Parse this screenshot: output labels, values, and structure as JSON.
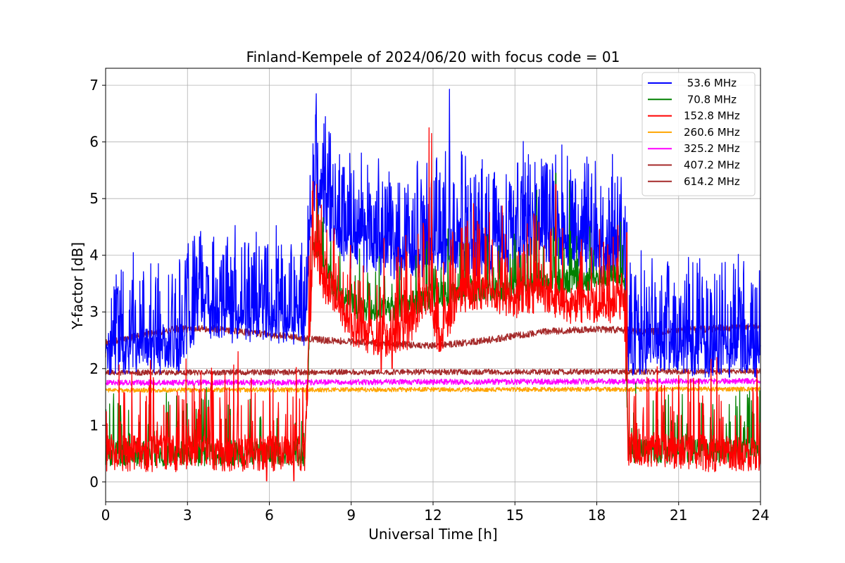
{
  "chart_data": {
    "type": "line",
    "title": "Finland-Kempele of 2024/06/20 with focus code = 01",
    "xlabel": "Universal Time [h]",
    "ylabel": "Y-factor [dB]",
    "xlim": [
      0,
      24
    ],
    "ylim": [
      -0.35,
      7.3
    ],
    "xticks": [
      0,
      3,
      6,
      9,
      12,
      15,
      18,
      21,
      24
    ],
    "yticks": [
      0,
      1,
      2,
      3,
      4,
      5,
      6,
      7
    ],
    "grid": true,
    "legend_position": "upper-right",
    "series": [
      {
        "name": " 53.6 MHz",
        "color": "#0000ff",
        "profile": [
          [
            0,
            2.2
          ],
          [
            2.8,
            2.25
          ],
          [
            3.0,
            2.6
          ],
          [
            3.5,
            2.9
          ],
          [
            4.5,
            2.75
          ],
          [
            5.5,
            2.8
          ],
          [
            6.5,
            2.75
          ],
          [
            7.3,
            2.7
          ],
          [
            7.6,
            5.1
          ],
          [
            8.2,
            4.5
          ],
          [
            9.0,
            4.05
          ],
          [
            10.0,
            3.9
          ],
          [
            11.0,
            3.85
          ],
          [
            12.0,
            3.9
          ],
          [
            13.0,
            4.0
          ],
          [
            14.0,
            3.9
          ],
          [
            15.0,
            4.05
          ],
          [
            16.0,
            4.2
          ],
          [
            17.0,
            4.1
          ],
          [
            18.0,
            3.9
          ],
          [
            19.0,
            3.85
          ],
          [
            19.15,
            2.2
          ],
          [
            21.0,
            2.2
          ],
          [
            22.0,
            2.15
          ],
          [
            24.0,
            2.15
          ]
        ],
        "noise": 0.32,
        "spike_rate": 0.5,
        "spike_max": 1.6,
        "peaks": [
          [
            7.7,
            6.48
          ],
          [
            8.0,
            6.32
          ],
          [
            12.6,
            6.93
          ],
          [
            15.1,
            5.63
          ],
          [
            19.1,
            4.58
          ],
          [
            18.7,
            4.45
          ],
          [
            5.1,
            4.22
          ],
          [
            3.7,
            3.8
          ],
          [
            21.4,
            3.49
          ],
          [
            8.7,
            5.55
          ]
        ]
      },
      {
        "name": " 70.8 MHz",
        "color": "#008000",
        "profile": [
          [
            0,
            0.5
          ],
          [
            7.3,
            0.5
          ],
          [
            7.6,
            4.3
          ],
          [
            8.5,
            3.3
          ],
          [
            9.5,
            3.0
          ],
          [
            10.5,
            3.05
          ],
          [
            11.5,
            3.2
          ],
          [
            12.0,
            3.3
          ],
          [
            13.0,
            3.35
          ],
          [
            14.0,
            3.4
          ],
          [
            15.0,
            3.4
          ],
          [
            16.0,
            3.5
          ],
          [
            17.0,
            3.55
          ],
          [
            18.0,
            3.6
          ],
          [
            19.0,
            3.65
          ],
          [
            19.15,
            0.55
          ],
          [
            21.0,
            0.55
          ],
          [
            22.0,
            0.55
          ],
          [
            24.0,
            0.55
          ]
        ],
        "noise": 0.22,
        "spike_rate": 0.12,
        "spike_max": 1.0,
        "peaks": [
          [
            16.5,
            5.45
          ],
          [
            15.8,
            5.15
          ],
          [
            17.0,
            5.3
          ]
        ]
      },
      {
        "name": "152.8 MHz",
        "color": "#ff0000",
        "profile": [
          [
            0,
            0.5
          ],
          [
            7.3,
            0.5
          ],
          [
            7.6,
            4.1
          ],
          [
            8.0,
            3.5
          ],
          [
            8.5,
            3.2
          ],
          [
            9.0,
            2.7
          ],
          [
            10.0,
            2.5
          ],
          [
            11.0,
            2.6
          ],
          [
            11.8,
            3.3
          ],
          [
            12.2,
            2.5
          ],
          [
            13.0,
            3.3
          ],
          [
            14.0,
            3.3
          ],
          [
            15.0,
            3.2
          ],
          [
            16.0,
            3.3
          ],
          [
            17.0,
            3.1
          ],
          [
            18.0,
            3.05
          ],
          [
            19.0,
            3.2
          ],
          [
            19.15,
            0.6
          ],
          [
            21.0,
            0.55
          ],
          [
            22.0,
            0.5
          ],
          [
            24.0,
            0.5
          ]
        ],
        "noise": 0.32,
        "spike_rate": 0.22,
        "spike_max": 1.4,
        "peaks": [
          [
            11.85,
            6.25
          ],
          [
            11.95,
            6.15
          ],
          [
            6.9,
            4.56
          ],
          [
            7.6,
            5.3
          ],
          [
            16.5,
            5.25
          ],
          [
            19.1,
            4.4
          ],
          [
            10.2,
            4.3
          ],
          [
            11.0,
            4.35
          ],
          [
            4.85,
            2.3
          ]
        ],
        "dips": [
          [
            6.9,
            0.02
          ],
          [
            5.9,
            0.02
          ],
          [
            10.1,
            1.95
          ],
          [
            10.5,
            2.0
          ]
        ]
      },
      {
        "name": "260.6 MHz",
        "color": "#ffa500",
        "profile": [
          [
            0,
            1.62
          ],
          [
            24,
            1.64
          ]
        ],
        "noise": 0.04,
        "spike_rate": 0.0,
        "spike_max": 0.0,
        "peaks": [
          [
            7.35,
            1.45
          ]
        ]
      },
      {
        "name": "325.2 MHz",
        "color": "#ff00ff",
        "profile": [
          [
            0,
            1.75
          ],
          [
            24,
            1.78
          ]
        ],
        "noise": 0.05,
        "spike_rate": 0.0,
        "spike_max": 0.0,
        "peaks": []
      },
      {
        "name": "407.2 MHz",
        "color": "#a52a2a",
        "profile": [
          [
            0,
            1.93
          ],
          [
            24,
            1.95
          ]
        ],
        "noise": 0.05,
        "spike_rate": 0.0,
        "spike_max": 0.0,
        "peaks": []
      },
      {
        "name": "614.2 MHz",
        "color": "#a52a2a",
        "profile": [
          [
            0,
            2.45
          ],
          [
            1.5,
            2.6
          ],
          [
            2.5,
            2.7
          ],
          [
            4.0,
            2.7
          ],
          [
            6.0,
            2.6
          ],
          [
            8.0,
            2.5
          ],
          [
            10.0,
            2.45
          ],
          [
            12.0,
            2.4
          ],
          [
            14.0,
            2.5
          ],
          [
            16.0,
            2.65
          ],
          [
            18.0,
            2.7
          ],
          [
            20.0,
            2.65
          ],
          [
            22.0,
            2.7
          ],
          [
            24.0,
            2.75
          ]
        ],
        "noise": 0.06,
        "spike_rate": 0.0,
        "spike_max": 0.0,
        "peaks": [
          [
            0.0,
            2.2
          ]
        ]
      }
    ]
  }
}
